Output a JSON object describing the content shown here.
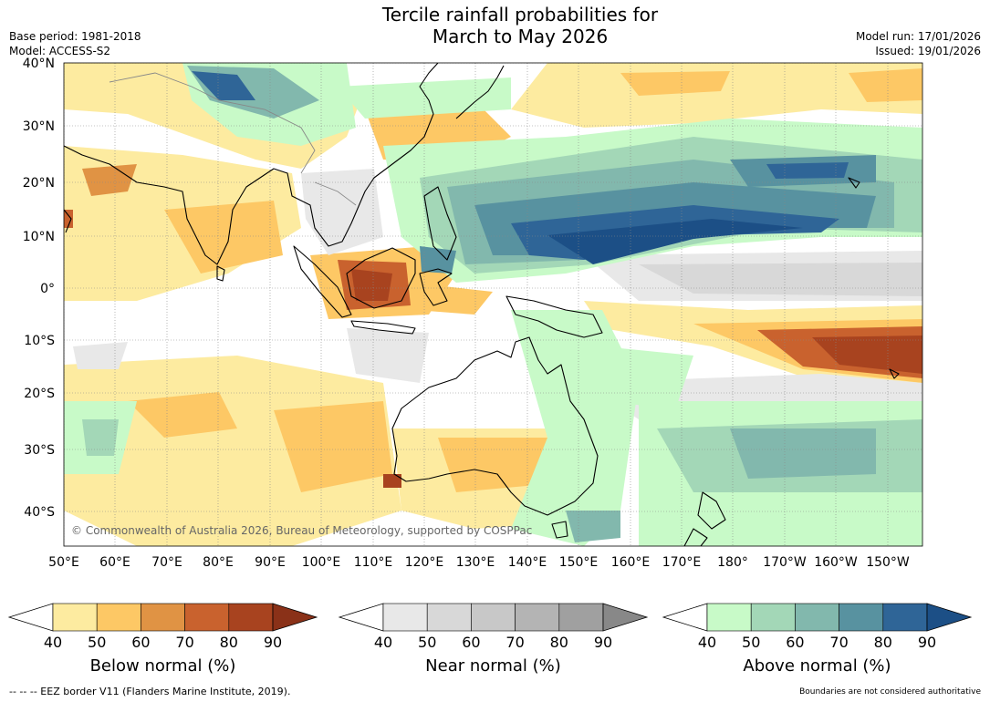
{
  "title": {
    "line1": "Tercile rainfall probabilities for",
    "line2": "March to May 2026"
  },
  "meta": {
    "base_period": "Base period: 1981-2018",
    "model": "Model: ACCESS-S2",
    "model_run": "Model run: 17/01/2026",
    "issued": "Issued: 19/01/2026"
  },
  "copyright": "© Commonwealth of Australia 2026, Bureau of Meteorology, supported by COSPPac",
  "axes": {
    "lon_labels": [
      "50°E",
      "60°E",
      "70°E",
      "80°E",
      "90°E",
      "100°E",
      "110°E",
      "120°E",
      "130°E",
      "140°E",
      "150°E",
      "160°E",
      "170°E",
      "180°",
      "170°W",
      "160°W",
      "150°W"
    ],
    "lat_labels": [
      "40°N",
      "30°N",
      "20°N",
      "10°N",
      "0°",
      "10°S",
      "20°S",
      "30°S",
      "40°S"
    ]
  },
  "legends": [
    {
      "label": "Below normal (%)",
      "ticks": [
        "40",
        "50",
        "60",
        "70",
        "80",
        "90"
      ],
      "colors": [
        "#fdeba0",
        "#fdc865",
        "#e09344",
        "#c9622e",
        "#a8431f",
        "#8a3118"
      ]
    },
    {
      "label": "Near normal (%)",
      "ticks": [
        "40",
        "50",
        "60",
        "70",
        "80",
        "90"
      ],
      "colors": [
        "#e8e8e8",
        "#d8d8d8",
        "#c8c8c8",
        "#b4b4b4",
        "#a0a0a0",
        "#888888"
      ]
    },
    {
      "label": "Above normal (%)",
      "ticks": [
        "40",
        "50",
        "60",
        "70",
        "80",
        "90"
      ],
      "colors": [
        "#c8fac8",
        "#a3d7b7",
        "#82b8ad",
        "#5892a0",
        "#2f6597",
        "#1c4f86"
      ]
    }
  ],
  "footer": {
    "eez": "--  --  -- EEZ border V11 (Flanders Marine Institute, 2019).",
    "disclaimer": "Boundaries are not considered authoritative"
  }
}
